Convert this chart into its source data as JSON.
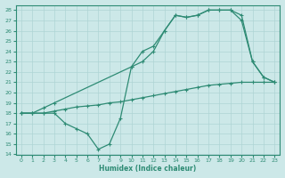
{
  "xlabel": "Humidex (Indice chaleur)",
  "xlim": [
    -0.5,
    23.5
  ],
  "ylim": [
    14,
    28.5
  ],
  "xticks": [
    0,
    1,
    2,
    3,
    4,
    5,
    6,
    7,
    8,
    9,
    10,
    11,
    12,
    13,
    14,
    15,
    16,
    17,
    18,
    19,
    20,
    21,
    22,
    23
  ],
  "yticks": [
    14,
    15,
    16,
    17,
    18,
    19,
    20,
    21,
    22,
    23,
    24,
    25,
    26,
    27,
    28
  ],
  "line_color": "#2e8b74",
  "bg_color": "#cce8e8",
  "grid_color": "#aed4d4",
  "line1_x": [
    0,
    1,
    2,
    3,
    4,
    5,
    6,
    7,
    8,
    9,
    10,
    11,
    12,
    13,
    14,
    15,
    16,
    17,
    18,
    19,
    20,
    21,
    22,
    23
  ],
  "line1_y": [
    18,
    18,
    18,
    18.2,
    18.4,
    18.6,
    18.7,
    18.8,
    19.0,
    19.1,
    19.3,
    19.5,
    19.7,
    19.9,
    20.1,
    20.3,
    20.5,
    20.7,
    20.8,
    20.9,
    21.0,
    21.0,
    21.0,
    21.0
  ],
  "line2_x": [
    0,
    1,
    2,
    3,
    4,
    5,
    6,
    7,
    8,
    9,
    10,
    11,
    12,
    13,
    14,
    15,
    16,
    17,
    18,
    19,
    20,
    21,
    22,
    23
  ],
  "line2_y": [
    18,
    18,
    18,
    18,
    17,
    16.5,
    16,
    14.5,
    15,
    17.5,
    22.5,
    23,
    24,
    26,
    27.5,
    27.3,
    27.5,
    28,
    28,
    28,
    27,
    23,
    21.5,
    21
  ],
  "line3_x": [
    0,
    1,
    2,
    3,
    10,
    11,
    12,
    13,
    14,
    15,
    16,
    17,
    18,
    19,
    20,
    21,
    22,
    23
  ],
  "line3_y": [
    18,
    18,
    18.5,
    19,
    22.5,
    24,
    24.5,
    26,
    27.5,
    27.3,
    27.5,
    28,
    28,
    28,
    27.5,
    23,
    21.5,
    21
  ],
  "marker": "+",
  "markersize": 3.0,
  "linewidth": 0.9
}
